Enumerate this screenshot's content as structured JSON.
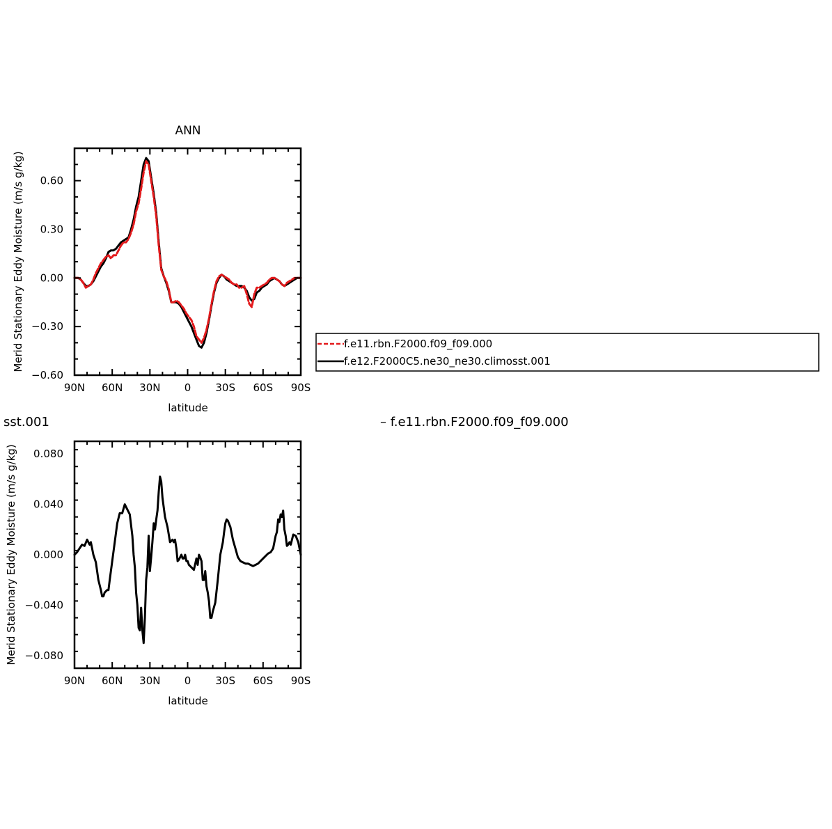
{
  "colors": {
    "series_1": "#e31a1c",
    "series_2": "#000000"
  },
  "legend": {
    "entries": [
      "f.e11.rbn.F2000.f09_f09.000",
      "f.e12.F2000C5.ne30_ne30.climosst.001"
    ]
  },
  "captions": {
    "left": "sst.001",
    "right": "–  f.e11.rbn.F2000.f09_f09.000"
  },
  "chart_data": [
    {
      "type": "line",
      "title": "ANN",
      "xlabel": "latitude",
      "ylabel": "Merid Stationary Eddy Moisture (m/s g/kg)",
      "xlim": [
        90,
        -90
      ],
      "ylim": [
        -0.6,
        0.8
      ],
      "xticks": [
        90,
        60,
        30,
        0,
        -30,
        -60,
        -90
      ],
      "xtick_labels": [
        "90N",
        "60N",
        "30N",
        "0",
        "30S",
        "60S",
        "90S"
      ],
      "yticks": [
        -0.6,
        -0.3,
        0.0,
        0.3,
        0.6
      ],
      "ytick_labels": [
        "−0.60",
        "−0.30",
        "0.00",
        "0.30",
        "0.60"
      ],
      "grid": false,
      "legend_position": "right",
      "series": [
        {
          "name": "f.e11.rbn.F2000.f09_f09.000",
          "style": "dashed",
          "color": "#e31a1c",
          "x": [
            90,
            87,
            85,
            83,
            81,
            79,
            77,
            75,
            73,
            71,
            69,
            67,
            65,
            63,
            61,
            59,
            57,
            55,
            53,
            51,
            49,
            47,
            45,
            43,
            41,
            39,
            37,
            35,
            33,
            31,
            29,
            27,
            25,
            23,
            21,
            19,
            17,
            15,
            13,
            11,
            9,
            7,
            5,
            3,
            1,
            -1,
            -3,
            -5,
            -7,
            -9,
            -11,
            -13,
            -15,
            -17,
            -19,
            -21,
            -23,
            -25,
            -27,
            -29,
            -31,
            -33,
            -35,
            -37,
            -39,
            -41,
            -43,
            -45,
            -47,
            -49,
            -51,
            -53,
            -55,
            -57,
            -59,
            -61,
            -63,
            -65,
            -67,
            -69,
            -71,
            -73,
            -75,
            -77,
            -79,
            -81,
            -83,
            -85,
            -87,
            -90
          ],
          "y": [
            0.0,
            0.0,
            -0.01,
            -0.03,
            -0.06,
            -0.05,
            -0.04,
            -0.01,
            0.03,
            0.06,
            0.09,
            0.11,
            0.13,
            0.14,
            0.12,
            0.14,
            0.14,
            0.17,
            0.2,
            0.22,
            0.22,
            0.24,
            0.28,
            0.33,
            0.41,
            0.46,
            0.55,
            0.65,
            0.72,
            0.7,
            0.6,
            0.5,
            0.38,
            0.2,
            0.05,
            0.01,
            -0.02,
            -0.07,
            -0.15,
            -0.15,
            -0.14,
            -0.15,
            -0.17,
            -0.19,
            -0.22,
            -0.24,
            -0.26,
            -0.3,
            -0.36,
            -0.38,
            -0.4,
            -0.37,
            -0.32,
            -0.25,
            -0.16,
            -0.08,
            -0.02,
            0.01,
            0.02,
            0.01,
            0.0,
            -0.01,
            -0.03,
            -0.04,
            -0.04,
            -0.06,
            -0.06,
            -0.05,
            -0.1,
            -0.16,
            -0.18,
            -0.1,
            -0.06,
            -0.06,
            -0.05,
            -0.04,
            -0.03,
            -0.01,
            0.0,
            0.0,
            -0.01,
            -0.02,
            -0.04,
            -0.05,
            -0.03,
            -0.02,
            -0.01,
            0.0,
            0.0,
            0.0
          ]
        },
        {
          "name": "f.e12.F2000C5.ne30_ne30.climosst.001",
          "style": "solid",
          "color": "#000000",
          "x": [
            90,
            87,
            85,
            83,
            81,
            79,
            77,
            75,
            73,
            71,
            69,
            67,
            65,
            63,
            61,
            59,
            57,
            55,
            53,
            51,
            49,
            47,
            45,
            43,
            41,
            39,
            37,
            35,
            33,
            31,
            29,
            27,
            25,
            23,
            21,
            19,
            17,
            15,
            13,
            11,
            9,
            7,
            5,
            3,
            1,
            -1,
            -3,
            -5,
            -7,
            -9,
            -11,
            -13,
            -15,
            -17,
            -19,
            -21,
            -23,
            -25,
            -27,
            -29,
            -31,
            -33,
            -35,
            -37,
            -39,
            -41,
            -43,
            -45,
            -47,
            -49,
            -51,
            -53,
            -55,
            -57,
            -59,
            -61,
            -63,
            -65,
            -67,
            -69,
            -71,
            -73,
            -75,
            -77,
            -79,
            -81,
            -83,
            -85,
            -87,
            -90
          ],
          "y": [
            0.0,
            0.0,
            -0.01,
            -0.03,
            -0.05,
            -0.05,
            -0.04,
            -0.02,
            0.01,
            0.04,
            0.07,
            0.09,
            0.12,
            0.16,
            0.17,
            0.17,
            0.18,
            0.2,
            0.22,
            0.23,
            0.24,
            0.25,
            0.3,
            0.36,
            0.44,
            0.5,
            0.6,
            0.7,
            0.74,
            0.72,
            0.62,
            0.52,
            0.4,
            0.22,
            0.06,
            0.01,
            -0.03,
            -0.08,
            -0.15,
            -0.15,
            -0.15,
            -0.16,
            -0.18,
            -0.21,
            -0.24,
            -0.27,
            -0.3,
            -0.34,
            -0.38,
            -0.42,
            -0.43,
            -0.4,
            -0.34,
            -0.26,
            -0.17,
            -0.09,
            -0.03,
            0.0,
            0.02,
            0.01,
            -0.01,
            -0.02,
            -0.03,
            -0.04,
            -0.05,
            -0.05,
            -0.05,
            -0.06,
            -0.08,
            -0.12,
            -0.14,
            -0.13,
            -0.09,
            -0.08,
            -0.06,
            -0.05,
            -0.04,
            -0.02,
            -0.01,
            0.0,
            -0.01,
            -0.02,
            -0.04,
            -0.05,
            -0.04,
            -0.03,
            -0.02,
            -0.01,
            0.0,
            0.0
          ]
        }
      ]
    },
    {
      "type": "line",
      "title": "",
      "xlabel": "latitude",
      "ylabel": "Merid Stationary Eddy Moisture (m/s g/kg)",
      "xlim": [
        90,
        -90
      ],
      "ylim": [
        -0.09,
        0.09
      ],
      "xticks": [
        90,
        60,
        30,
        0,
        -30,
        -60,
        -90
      ],
      "xtick_labels": [
        "90N",
        "60N",
        "30N",
        "0",
        "30S",
        "60S",
        "90S"
      ],
      "yticks": [
        -0.08,
        -0.04,
        0.0,
        0.04,
        0.08
      ],
      "ytick_labels": [
        "−0.080",
        "−0.040",
        "0.000",
        "0.040",
        "0.080"
      ],
      "grid": false,
      "series": [
        {
          "style": "solid",
          "color": "#000000",
          "x": [
            90,
            88,
            86,
            84,
            82,
            80,
            79,
            78,
            77,
            76,
            75,
            73,
            71,
            69,
            68,
            67,
            66,
            64,
            63,
            62,
            60,
            58,
            56,
            54,
            52,
            50,
            48,
            46,
            44,
            43,
            42,
            41,
            40,
            39,
            38,
            37,
            36,
            35,
            34,
            33,
            32,
            31,
            30,
            29,
            28,
            27,
            26,
            25,
            24,
            23,
            22,
            21,
            20,
            18,
            16,
            14,
            12,
            11,
            10,
            9,
            8,
            7,
            6,
            5,
            4,
            3,
            2,
            1,
            0,
            -1,
            -3,
            -5,
            -7,
            -8,
            -9,
            -10,
            -11,
            -12,
            -13,
            -14,
            -15,
            -16,
            -17,
            -18,
            -19,
            -20,
            -22,
            -24,
            -26,
            -28,
            -29,
            -30,
            -31,
            -32,
            -34,
            -36,
            -38,
            -40,
            -42,
            -44,
            -46,
            -48,
            -50,
            -52,
            -54,
            -56,
            -58,
            -60,
            -62,
            -64,
            -66,
            -68,
            -70,
            -71,
            -72,
            -73,
            -74,
            -75,
            -76,
            -77,
            -78,
            -79,
            -80,
            -81,
            -82,
            -83,
            -84,
            -86,
            -88,
            -90
          ],
          "y": [
            0.0,
            0.002,
            0.005,
            0.008,
            0.007,
            0.012,
            0.01,
            0.008,
            0.01,
            0.005,
            0.0,
            -0.006,
            -0.02,
            -0.028,
            -0.033,
            -0.033,
            -0.03,
            -0.028,
            -0.028,
            -0.02,
            -0.005,
            0.01,
            0.025,
            0.033,
            0.033,
            0.04,
            0.036,
            0.032,
            0.015,
            0.0,
            -0.01,
            -0.03,
            -0.04,
            -0.058,
            -0.06,
            -0.042,
            -0.06,
            -0.07,
            -0.05,
            -0.02,
            -0.01,
            0.015,
            -0.013,
            -0.002,
            0.01,
            0.025,
            0.02,
            0.028,
            0.035,
            0.05,
            0.062,
            0.058,
            0.045,
            0.03,
            0.022,
            0.01,
            0.012,
            0.01,
            0.012,
            0.005,
            -0.005,
            -0.004,
            -0.002,
            0.0,
            -0.003,
            -0.003,
            0.0,
            -0.005,
            -0.005,
            -0.008,
            -0.01,
            -0.012,
            -0.003,
            -0.008,
            0.0,
            -0.002,
            -0.005,
            -0.02,
            -0.02,
            -0.013,
            -0.025,
            -0.03,
            -0.037,
            -0.05,
            -0.05,
            -0.045,
            -0.038,
            -0.02,
            0.0,
            0.01,
            0.018,
            0.025,
            0.028,
            0.027,
            0.022,
            0.012,
            0.005,
            -0.002,
            -0.005,
            -0.006,
            -0.007,
            -0.007,
            -0.008,
            -0.009,
            -0.008,
            -0.007,
            -0.005,
            -0.003,
            -0.001,
            0.001,
            0.002,
            0.005,
            0.015,
            0.018,
            0.028,
            0.026,
            0.032,
            0.03,
            0.035,
            0.02,
            0.015,
            0.007,
            0.008,
            0.01,
            0.008,
            0.012,
            0.016,
            0.015,
            0.01,
            0.0
          ]
        }
      ]
    }
  ]
}
